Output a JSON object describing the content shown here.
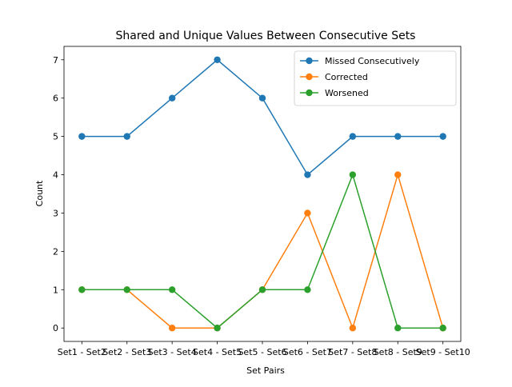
{
  "chart_data": {
    "type": "line",
    "title": "Shared and Unique Values Between Consecutive Sets",
    "xlabel": "Set Pairs",
    "ylabel": "Count",
    "categories": [
      "Set1 - Set2",
      "Set2 - Set3",
      "Set3 - Set4",
      "Set4 - Set5",
      "Set5 - Set6",
      "Set6 - Set7",
      "Set7 - Set8",
      "Set8 - Set9",
      "Set9 - Set10"
    ],
    "yticks": [
      "0",
      "1",
      "2",
      "3",
      "4",
      "5",
      "6",
      "7"
    ],
    "ylim": [
      -0.35,
      7.35
    ],
    "grid": false,
    "legend_position": "top-right",
    "series": [
      {
        "name": "Missed Consecutively",
        "color": "#1f77b4",
        "values": [
          5,
          5,
          6,
          7,
          6,
          4,
          5,
          5,
          5
        ]
      },
      {
        "name": "Corrected",
        "color": "#ff7f0e",
        "values": [
          1,
          1,
          0,
          0,
          1,
          3,
          0,
          4,
          0
        ]
      },
      {
        "name": "Worsened",
        "color": "#2ca02c",
        "values": [
          1,
          1,
          1,
          0,
          1,
          1,
          4,
          0,
          0
        ]
      }
    ]
  }
}
